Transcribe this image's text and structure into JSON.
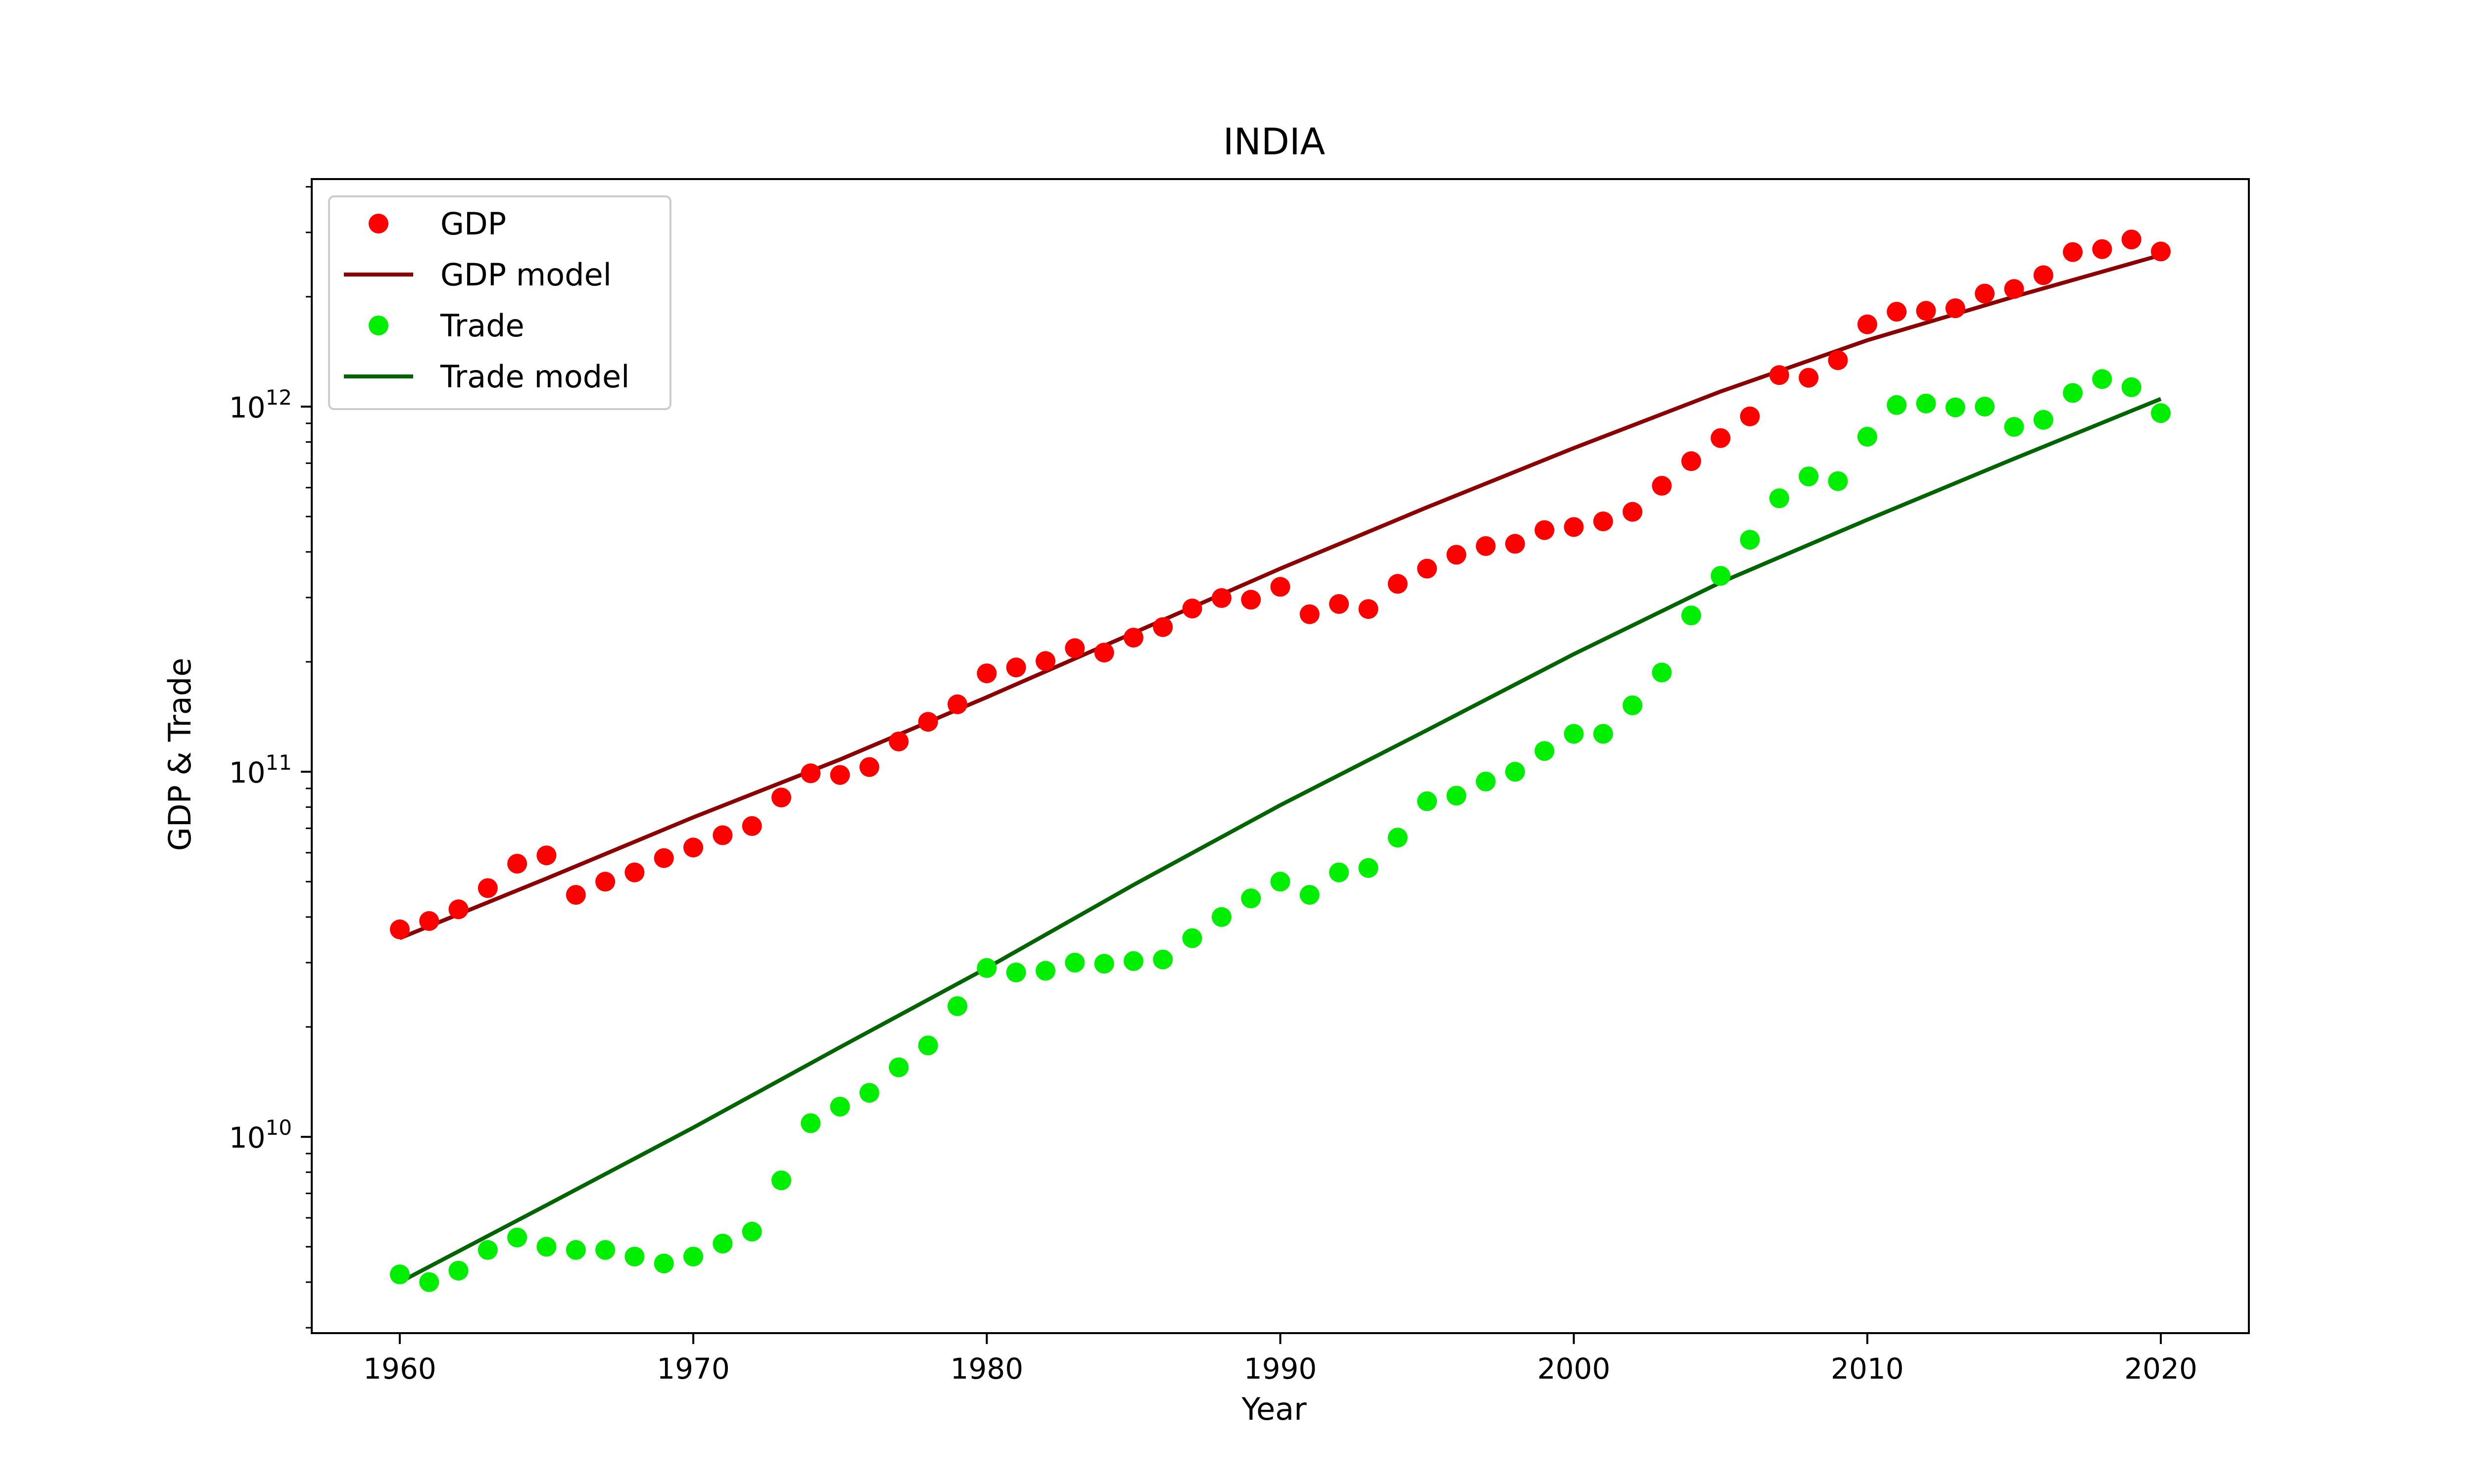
{
  "chart_data": {
    "type": "scatter",
    "title": "INDIA",
    "xlabel": "Year",
    "ylabel": "GDP & Trade",
    "yscale": "log",
    "xlim": [
      1957,
      2023
    ],
    "ylim": [
      2900000000.0,
      4200000000000.0
    ],
    "grid": false,
    "legend_position": "top-left",
    "x_ticks": [
      1960,
      1970,
      1980,
      1990,
      2000,
      2010,
      2020
    ],
    "x_tick_labels": [
      "1960",
      "1970",
      "1980",
      "1990",
      "2000",
      "2010",
      "2020"
    ],
    "y_ticks": [
      10000000000.0,
      100000000000.0,
      1000000000000.0
    ],
    "y_tick_labels": [
      {
        "base": "10",
        "exp": "10"
      },
      {
        "base": "10",
        "exp": "11"
      },
      {
        "base": "10",
        "exp": "12"
      }
    ],
    "years": [
      1960,
      1961,
      1962,
      1963,
      1964,
      1965,
      1966,
      1967,
      1968,
      1969,
      1970,
      1971,
      1972,
      1973,
      1974,
      1975,
      1976,
      1977,
      1978,
      1979,
      1980,
      1981,
      1982,
      1983,
      1984,
      1985,
      1986,
      1987,
      1988,
      1989,
      1990,
      1991,
      1992,
      1993,
      1994,
      1995,
      1996,
      1997,
      1998,
      1999,
      2000,
      2001,
      2002,
      2003,
      2004,
      2005,
      2006,
      2007,
      2008,
      2009,
      2010,
      2011,
      2012,
      2013,
      2014,
      2015,
      2016,
      2017,
      2018,
      2019,
      2020
    ],
    "series": [
      {
        "name": "GDP",
        "kind": "scatter",
        "color": "#ff0000",
        "values": [
          37000000000.0,
          39000000000.0,
          42000000000.0,
          48000000000.0,
          56000000000.0,
          59000000000.0,
          46000000000.0,
          50000000000.0,
          53000000000.0,
          58000000000.0,
          62000000000.0,
          67000000000.0,
          71000000000.0,
          85000000000.0,
          99000000000.0,
          98000000000.0,
          103000000000.0,
          121000000000.0,
          137000000000.0,
          153000000000.0,
          186000000000.0,
          193000000000.0,
          201000000000.0,
          218000000000.0,
          212000000000.0,
          233000000000.0,
          249000000000.0,
          280000000000.0,
          299000000000.0,
          296000000000.0,
          321000000000.0,
          270000000000.0,
          288000000000.0,
          279000000000.0,
          327000000000.0,
          360000000000.0,
          393000000000.0,
          415000000000.0,
          421000000000.0,
          459000000000.0,
          468000000000.0,
          485000000000.0,
          515000000000.0,
          607000000000.0,
          709000000000.0,
          820000000000.0,
          940000000000.0,
          1220000000000.0,
          1200000000000.0,
          1340000000000.0,
          1680000000000.0,
          1820000000000.0,
          1830000000000.0,
          1860000000000.0,
          2040000000000.0,
          2100000000000.0,
          2290000000000.0,
          2650000000000.0,
          2700000000000.0,
          2870000000000.0,
          2660000000000.0
        ]
      },
      {
        "name": "GDP model",
        "kind": "line",
        "color": "#8b0000",
        "x": [
          1960,
          1965,
          1970,
          1975,
          1980,
          1985,
          1990,
          1995,
          2000,
          2005,
          2010,
          2015,
          2020
        ],
        "values": [
          35000000000.0,
          51000000000.0,
          75000000000.0,
          108000000000.0,
          160000000000.0,
          240000000000.0,
          360000000000.0,
          530000000000.0,
          770000000000.0,
          1100000000000.0,
          1520000000000.0,
          2000000000000.0,
          2600000000000.0
        ]
      },
      {
        "name": "Trade",
        "kind": "scatter",
        "color": "#00ee00",
        "values": [
          4200000000.0,
          4000000000.0,
          4300000000.0,
          4900000000.0,
          5300000000.0,
          5000000000.0,
          4900000000.0,
          4900000000.0,
          4700000000.0,
          4500000000.0,
          4700000000.0,
          5100000000.0,
          5500000000.0,
          7600000000.0,
          10900000000.0,
          12100000000.0,
          13200000000.0,
          15500000000.0,
          17800000000.0,
          22800000000.0,
          29000000000.0,
          28200000000.0,
          28500000000.0,
          30000000000.0,
          29800000000.0,
          30300000000.0,
          30600000000.0,
          35000000000.0,
          40000000000.0,
          45000000000.0,
          50000000000.0,
          46000000000.0,
          53000000000.0,
          54500000000.0,
          66000000000.0,
          83000000000.0,
          86000000000.0,
          94000000000.0,
          100000000000.0,
          114000000000.0,
          127000000000.0,
          127000000000.0,
          152000000000.0,
          187000000000.0,
          268000000000.0,
          344000000000.0,
          432000000000.0,
          561000000000.0,
          644000000000.0,
          625000000000.0,
          827000000000.0,
          1010000000000.0,
          1020000000000.0,
          995000000000.0,
          1000000000000.0,
          880000000000.0,
          920000000000.0,
          1090000000000.0,
          1190000000000.0,
          1130000000000.0,
          960000000000.0
        ]
      },
      {
        "name": "Trade model",
        "kind": "line",
        "color": "#006400",
        "x": [
          1960,
          1965,
          1970,
          1975,
          1980,
          1985,
          1990,
          1995,
          2000,
          2005,
          2010,
          2015,
          2020
        ],
        "values": [
          4000000000.0,
          6500000000.0,
          10600000000.0,
          17600000000.0,
          29000000000.0,
          49000000000.0,
          81000000000.0,
          130000000000.0,
          210000000000.0,
          330000000000.0,
          490000000000.0,
          720000000000.0,
          1050000000000.0
        ]
      }
    ]
  }
}
